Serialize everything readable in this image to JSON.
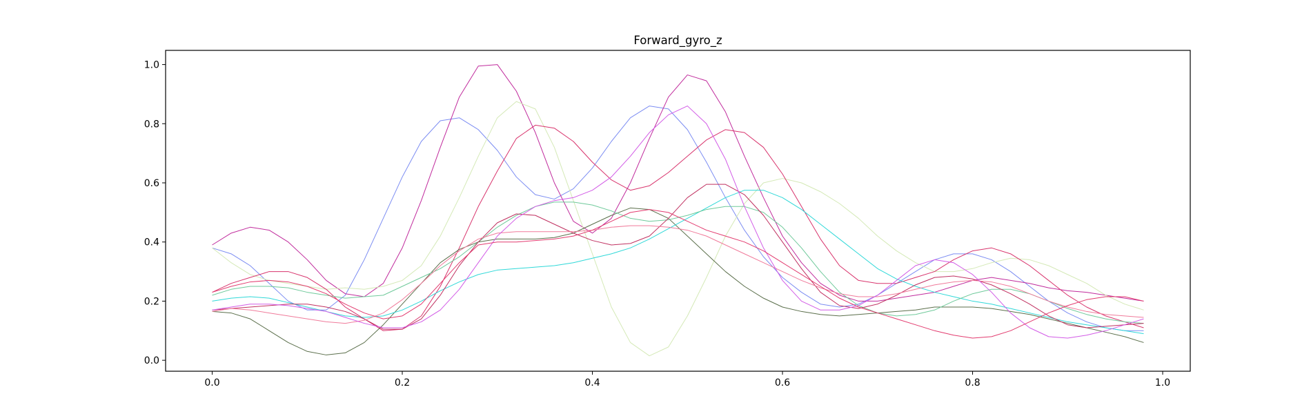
{
  "chart_data": {
    "type": "line",
    "title": "Forward_gyro_z",
    "xlabel": "",
    "ylabel": "",
    "xlim": [
      -0.049,
      1.029
    ],
    "ylim": [
      -0.037,
      1.048
    ],
    "xticks": [
      0.0,
      0.2,
      0.4,
      0.6,
      0.8,
      1.0
    ],
    "xtick_labels": [
      "0.0",
      "0.2",
      "0.4",
      "0.6",
      "0.8",
      "1.0"
    ],
    "yticks": [
      0.0,
      0.2,
      0.4,
      0.6,
      0.8,
      1.0
    ],
    "ytick_labels": [
      "0.0",
      "0.2",
      "0.4",
      "0.6",
      "0.8",
      "1.0"
    ],
    "grid": false,
    "legend": "none",
    "x": [
      0.0,
      0.02,
      0.04,
      0.06,
      0.08,
      0.1,
      0.12,
      0.14,
      0.16,
      0.18,
      0.2,
      0.22,
      0.24,
      0.26,
      0.28,
      0.3,
      0.32,
      0.34,
      0.36,
      0.38,
      0.4,
      0.42,
      0.44,
      0.46,
      0.48,
      0.5,
      0.52,
      0.54,
      0.56,
      0.58,
      0.6,
      0.62,
      0.64,
      0.66,
      0.68,
      0.7,
      0.72,
      0.74,
      0.76,
      0.78,
      0.8,
      0.82,
      0.84,
      0.86,
      0.88,
      0.9,
      0.92,
      0.94,
      0.96,
      0.98
    ],
    "series": [
      {
        "color": "#7b8cf2",
        "values": [
          0.38,
          0.36,
          0.32,
          0.26,
          0.2,
          0.17,
          0.17,
          0.22,
          0.34,
          0.48,
          0.62,
          0.74,
          0.81,
          0.82,
          0.78,
          0.71,
          0.62,
          0.56,
          0.545,
          0.58,
          0.65,
          0.74,
          0.82,
          0.86,
          0.85,
          0.78,
          0.67,
          0.55,
          0.44,
          0.35,
          0.28,
          0.23,
          0.19,
          0.18,
          0.19,
          0.22,
          0.26,
          0.3,
          0.34,
          0.36,
          0.36,
          0.34,
          0.3,
          0.25,
          0.2,
          0.16,
          0.13,
          0.11,
          0.1,
          0.1
        ]
      },
      {
        "color": "#c02a9c",
        "values": [
          0.39,
          0.43,
          0.45,
          0.44,
          0.4,
          0.34,
          0.27,
          0.225,
          0.215,
          0.26,
          0.38,
          0.54,
          0.72,
          0.89,
          0.995,
          1.0,
          0.91,
          0.77,
          0.6,
          0.47,
          0.43,
          0.48,
          0.6,
          0.75,
          0.89,
          0.965,
          0.945,
          0.84,
          0.69,
          0.55,
          0.42,
          0.33,
          0.26,
          0.22,
          0.2,
          0.2,
          0.21,
          0.22,
          0.23,
          0.25,
          0.27,
          0.28,
          0.27,
          0.26,
          0.245,
          0.235,
          0.23,
          0.22,
          0.21,
          0.2
        ]
      },
      {
        "color": "#d4e9b6",
        "values": [
          0.38,
          0.33,
          0.29,
          0.27,
          0.26,
          0.25,
          0.24,
          0.245,
          0.24,
          0.25,
          0.27,
          0.32,
          0.42,
          0.55,
          0.69,
          0.82,
          0.875,
          0.85,
          0.72,
          0.54,
          0.36,
          0.18,
          0.06,
          0.015,
          0.045,
          0.15,
          0.28,
          0.42,
          0.53,
          0.6,
          0.615,
          0.6,
          0.57,
          0.53,
          0.48,
          0.42,
          0.37,
          0.33,
          0.3,
          0.3,
          0.31,
          0.33,
          0.345,
          0.34,
          0.32,
          0.29,
          0.26,
          0.22,
          0.19,
          0.17
        ]
      },
      {
        "color": "#d8336c",
        "values": [
          0.23,
          0.26,
          0.28,
          0.3,
          0.3,
          0.28,
          0.24,
          0.18,
          0.14,
          0.1,
          0.105,
          0.15,
          0.25,
          0.38,
          0.52,
          0.64,
          0.75,
          0.795,
          0.785,
          0.74,
          0.67,
          0.61,
          0.575,
          0.59,
          0.635,
          0.69,
          0.745,
          0.78,
          0.77,
          0.72,
          0.63,
          0.52,
          0.41,
          0.32,
          0.27,
          0.26,
          0.26,
          0.28,
          0.3,
          0.34,
          0.37,
          0.38,
          0.36,
          0.32,
          0.27,
          0.22,
          0.18,
          0.15,
          0.13,
          0.11
        ]
      },
      {
        "color": "#5a6e4a",
        "values": [
          0.165,
          0.16,
          0.14,
          0.1,
          0.06,
          0.03,
          0.018,
          0.025,
          0.06,
          0.12,
          0.19,
          0.26,
          0.33,
          0.375,
          0.4,
          0.41,
          0.41,
          0.41,
          0.415,
          0.43,
          0.46,
          0.49,
          0.515,
          0.51,
          0.48,
          0.42,
          0.36,
          0.3,
          0.25,
          0.21,
          0.18,
          0.165,
          0.155,
          0.15,
          0.155,
          0.16,
          0.165,
          0.17,
          0.18,
          0.18,
          0.18,
          0.175,
          0.165,
          0.155,
          0.14,
          0.125,
          0.11,
          0.095,
          0.08,
          0.06
        ]
      },
      {
        "color": "#2ed8d8",
        "values": [
          0.2,
          0.21,
          0.215,
          0.21,
          0.195,
          0.18,
          0.165,
          0.15,
          0.145,
          0.15,
          0.17,
          0.2,
          0.235,
          0.265,
          0.29,
          0.305,
          0.31,
          0.315,
          0.32,
          0.33,
          0.345,
          0.36,
          0.38,
          0.41,
          0.445,
          0.48,
          0.515,
          0.55,
          0.575,
          0.575,
          0.55,
          0.51,
          0.46,
          0.41,
          0.36,
          0.31,
          0.275,
          0.25,
          0.23,
          0.215,
          0.2,
          0.19,
          0.175,
          0.16,
          0.145,
          0.13,
          0.12,
          0.11,
          0.1,
          0.09
        ]
      },
      {
        "color": "#6ec99a",
        "values": [
          0.22,
          0.24,
          0.25,
          0.25,
          0.245,
          0.23,
          0.22,
          0.21,
          0.215,
          0.22,
          0.25,
          0.28,
          0.31,
          0.35,
          0.4,
          0.45,
          0.49,
          0.52,
          0.535,
          0.535,
          0.525,
          0.505,
          0.48,
          0.47,
          0.475,
          0.49,
          0.51,
          0.52,
          0.52,
          0.5,
          0.45,
          0.38,
          0.3,
          0.23,
          0.185,
          0.16,
          0.15,
          0.155,
          0.17,
          0.2,
          0.225,
          0.24,
          0.24,
          0.225,
          0.2,
          0.175,
          0.155,
          0.14,
          0.13,
          0.125
        ]
      },
      {
        "color": "#c03060",
        "values": [
          0.17,
          0.175,
          0.18,
          0.185,
          0.19,
          0.19,
          0.18,
          0.165,
          0.14,
          0.105,
          0.105,
          0.14,
          0.22,
          0.32,
          0.4,
          0.465,
          0.495,
          0.49,
          0.46,
          0.43,
          0.405,
          0.39,
          0.395,
          0.42,
          0.48,
          0.55,
          0.595,
          0.595,
          0.56,
          0.49,
          0.4,
          0.31,
          0.23,
          0.185,
          0.175,
          0.19,
          0.22,
          0.255,
          0.28,
          0.285,
          0.275,
          0.255,
          0.225,
          0.19,
          0.15,
          0.12,
          0.11,
          0.115,
          0.12,
          0.125
        ]
      },
      {
        "color": "#f07a9a",
        "values": [
          0.165,
          0.175,
          0.17,
          0.16,
          0.15,
          0.14,
          0.13,
          0.125,
          0.135,
          0.16,
          0.205,
          0.26,
          0.32,
          0.37,
          0.41,
          0.43,
          0.435,
          0.435,
          0.435,
          0.435,
          0.44,
          0.45,
          0.455,
          0.455,
          0.45,
          0.44,
          0.42,
          0.39,
          0.36,
          0.33,
          0.3,
          0.27,
          0.245,
          0.225,
          0.215,
          0.215,
          0.225,
          0.24,
          0.255,
          0.265,
          0.27,
          0.265,
          0.25,
          0.225,
          0.2,
          0.18,
          0.165,
          0.155,
          0.15,
          0.145
        ]
      },
      {
        "color": "#d25ae6",
        "values": [
          0.17,
          0.18,
          0.19,
          0.19,
          0.185,
          0.175,
          0.165,
          0.145,
          0.125,
          0.11,
          0.11,
          0.13,
          0.17,
          0.24,
          0.33,
          0.42,
          0.48,
          0.52,
          0.54,
          0.55,
          0.575,
          0.62,
          0.69,
          0.77,
          0.83,
          0.86,
          0.8,
          0.68,
          0.52,
          0.38,
          0.27,
          0.2,
          0.17,
          0.17,
          0.185,
          0.22,
          0.27,
          0.32,
          0.34,
          0.33,
          0.29,
          0.23,
          0.16,
          0.11,
          0.08,
          0.075,
          0.085,
          0.1,
          0.12,
          0.14
        ]
      },
      {
        "color": "#e23a6e",
        "values": [
          0.23,
          0.25,
          0.265,
          0.27,
          0.265,
          0.25,
          0.225,
          0.19,
          0.16,
          0.14,
          0.15,
          0.19,
          0.26,
          0.33,
          0.39,
          0.4,
          0.4,
          0.405,
          0.41,
          0.42,
          0.44,
          0.47,
          0.5,
          0.51,
          0.5,
          0.47,
          0.44,
          0.42,
          0.4,
          0.37,
          0.33,
          0.29,
          0.25,
          0.21,
          0.18,
          0.16,
          0.14,
          0.12,
          0.1,
          0.085,
          0.075,
          0.08,
          0.1,
          0.13,
          0.16,
          0.185,
          0.205,
          0.215,
          0.215,
          0.2
        ]
      }
    ]
  }
}
